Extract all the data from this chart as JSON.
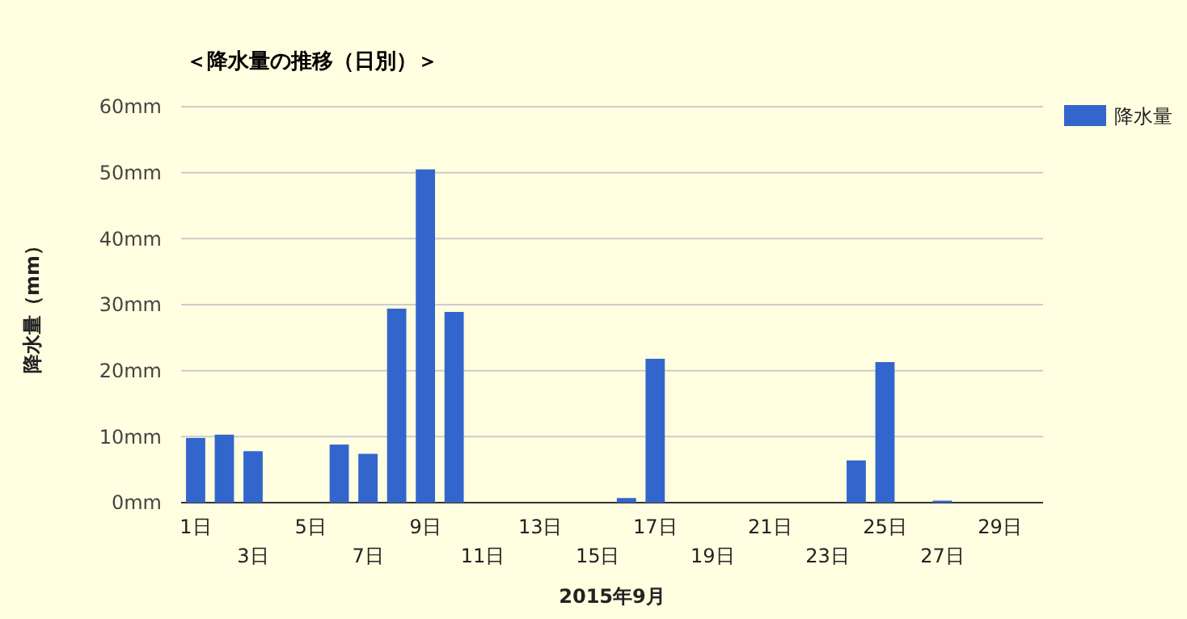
{
  "chart_data": {
    "type": "bar",
    "title": "＜降水量の推移（日別）＞",
    "xlabel": "2015年9月",
    "ylabel": "降水量（mm）",
    "categories": [
      "1日",
      null,
      "3日",
      null,
      "5日",
      null,
      "7日",
      null,
      "9日",
      null,
      "11日",
      null,
      "13日",
      null,
      "15日",
      null,
      "17日",
      null,
      "19日",
      null,
      "21日",
      null,
      "23日",
      null,
      "25日",
      null,
      "27日",
      null,
      "29日",
      null
    ],
    "series": [
      {
        "name": "降水量",
        "color": "#3366cc",
        "values": [
          9.8,
          10.3,
          7.8,
          0,
          0,
          8.8,
          7.4,
          29.4,
          50.5,
          28.9,
          0,
          0,
          0,
          0,
          0,
          0.7,
          21.8,
          0,
          0,
          0,
          0,
          0,
          0,
          6.4,
          21.3,
          0,
          0.3,
          0,
          0,
          0
        ]
      }
    ],
    "ylim": [
      0,
      60
    ],
    "yticks": [
      {
        "value": 0,
        "label": "0mm"
      },
      {
        "value": 10,
        "label": "10mm"
      },
      {
        "value": 20,
        "label": "20mm"
      },
      {
        "value": 30,
        "label": "30mm"
      },
      {
        "value": 40,
        "label": "40mm"
      },
      {
        "value": 50,
        "label": "50mm"
      },
      {
        "value": 60,
        "label": "60mm"
      }
    ],
    "grid": "y",
    "legend": "right"
  }
}
